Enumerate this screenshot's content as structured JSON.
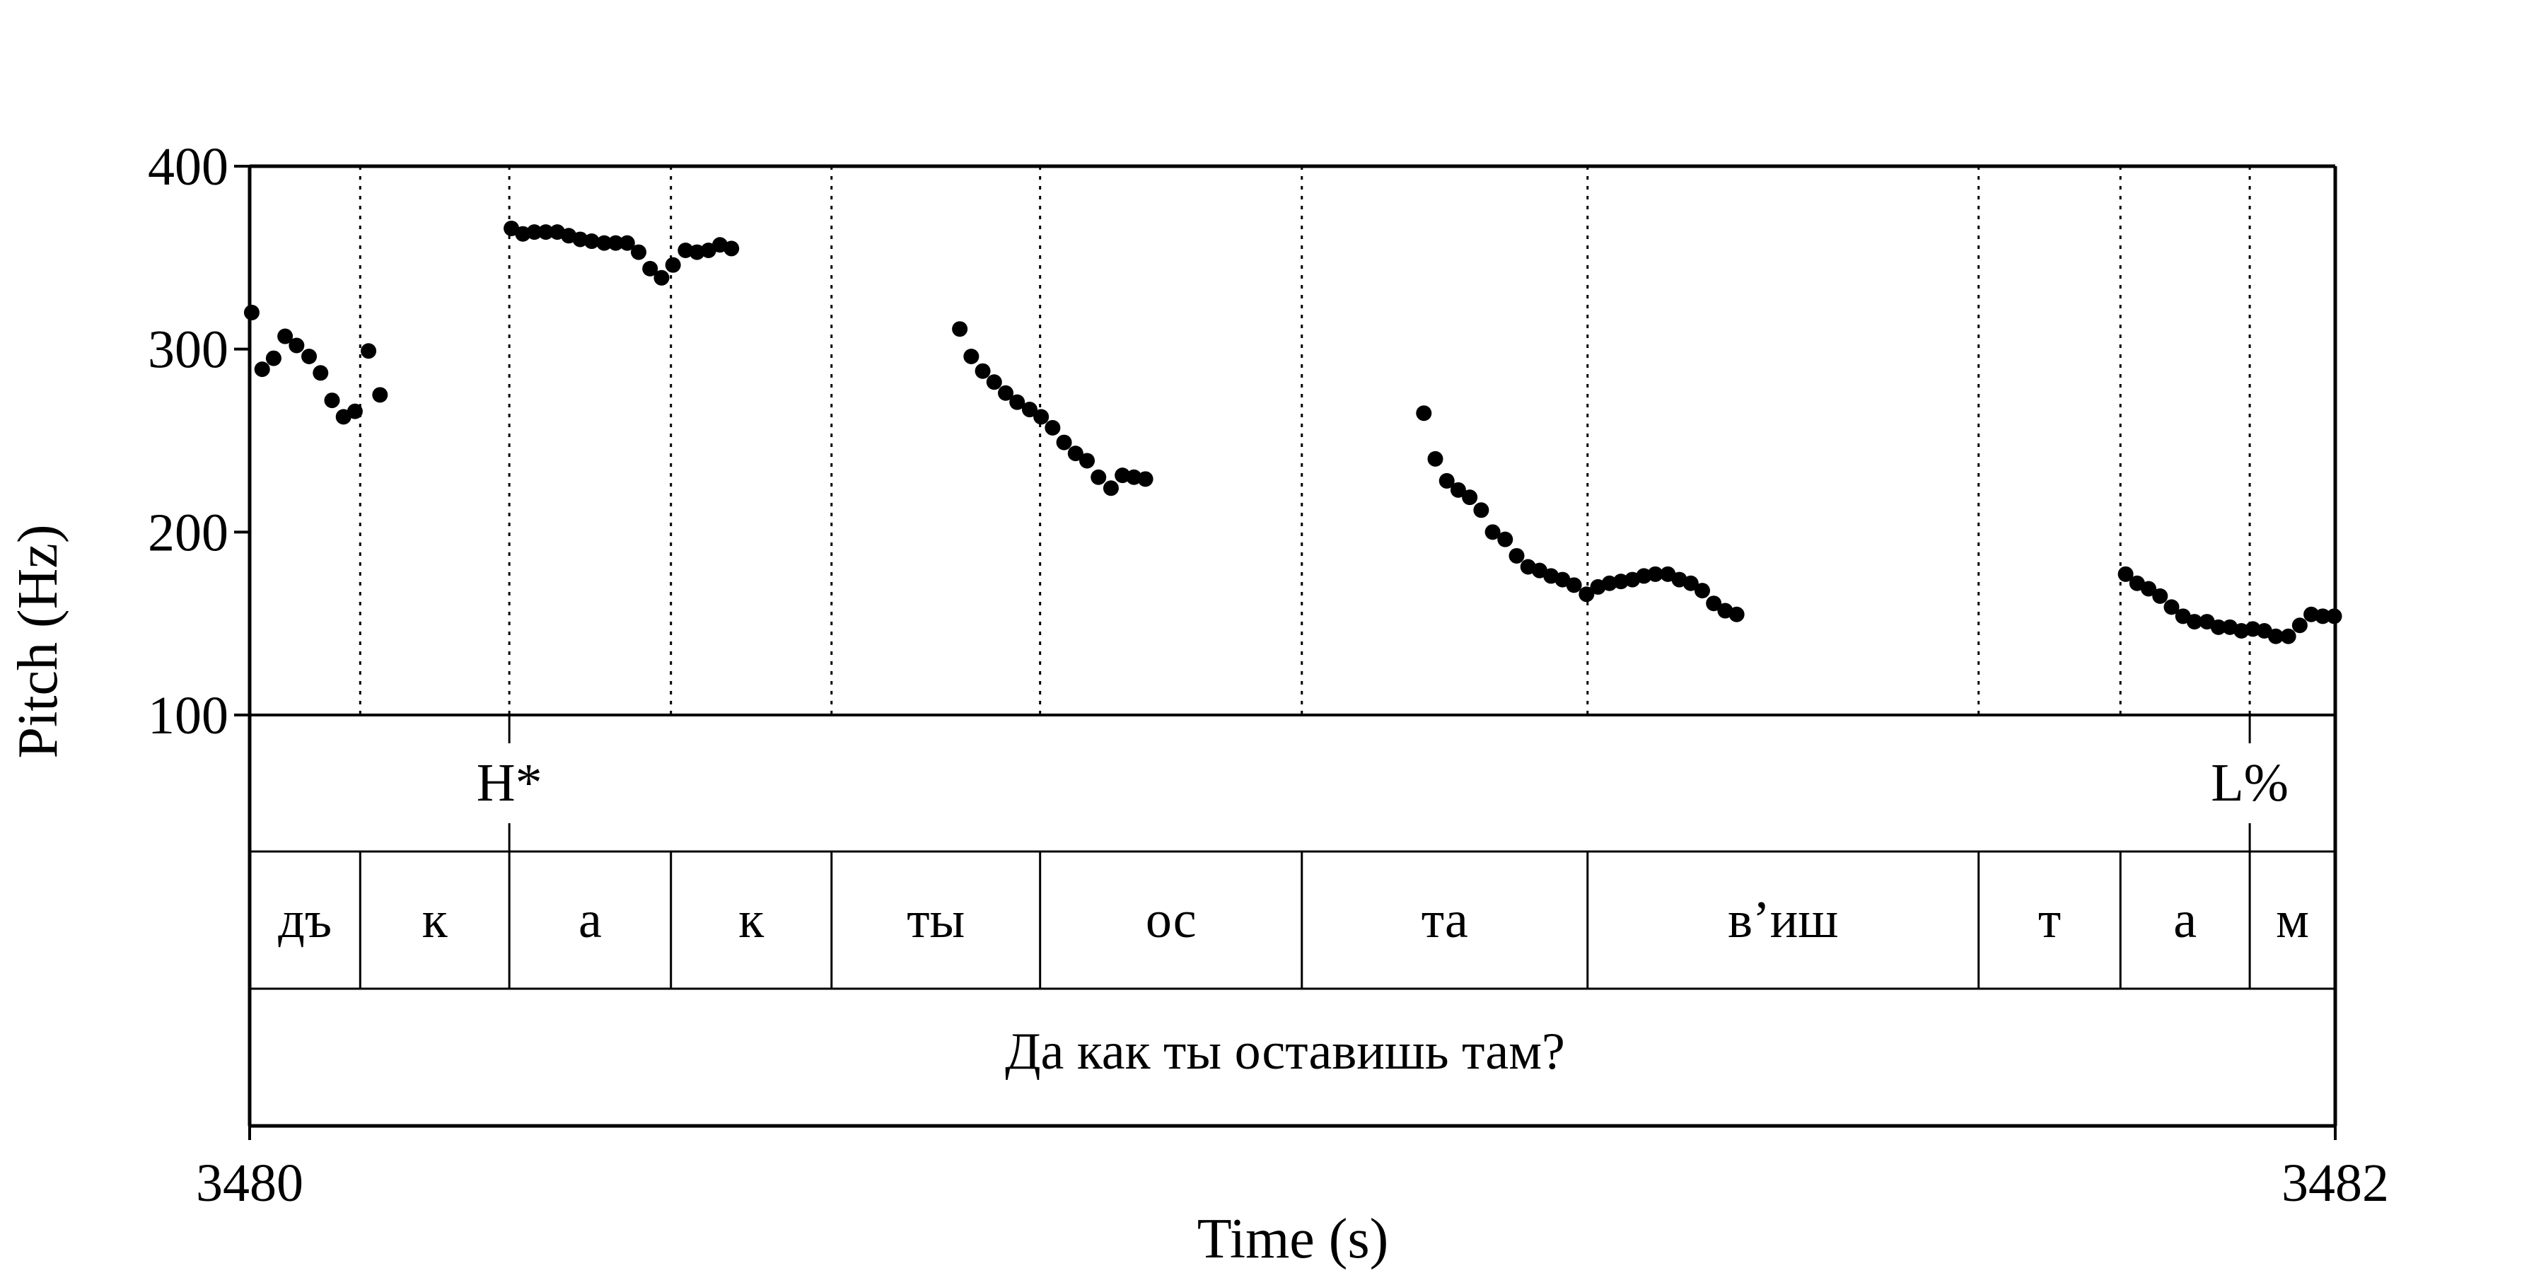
{
  "chart_data": {
    "type": "scatter",
    "xlabel": "Time (s)",
    "ylabel": "Pitch (Hz)",
    "xlim": [
      3480,
      3482
    ],
    "ylim": [
      100,
      400
    ],
    "y_ticks": [
      "100",
      "200",
      "300",
      "400"
    ],
    "x_ticks": [
      {
        "value": 3480,
        "label": "3480"
      },
      {
        "value": 3482,
        "label": "3482"
      }
    ],
    "boundaries": [
      3480.106,
      3480.249,
      3480.404,
      3480.558,
      3480.758,
      3481.009,
      3481.283,
      3481.658,
      3481.794,
      3481.918
    ],
    "tones": [
      {
        "t": 3480.249,
        "label": "H*"
      },
      {
        "t": 3481.918,
        "label": "L%"
      }
    ],
    "syllables": [
      {
        "start": 3480.0,
        "end": 3480.106,
        "label": "дъ"
      },
      {
        "start": 3480.106,
        "end": 3480.249,
        "label": "к"
      },
      {
        "start": 3480.249,
        "end": 3480.404,
        "label": "а"
      },
      {
        "start": 3480.404,
        "end": 3480.558,
        "label": "к"
      },
      {
        "start": 3480.558,
        "end": 3480.758,
        "label": "ты"
      },
      {
        "start": 3480.758,
        "end": 3481.009,
        "label": "ос"
      },
      {
        "start": 3481.009,
        "end": 3481.283,
        "label": "та"
      },
      {
        "start": 3481.283,
        "end": 3481.658,
        "label": "в’иш"
      },
      {
        "start": 3481.658,
        "end": 3481.794,
        "label": "т"
      },
      {
        "start": 3481.794,
        "end": 3481.918,
        "label": "а"
      },
      {
        "start": 3481.918,
        "end": 3482.0,
        "label": "м"
      }
    ],
    "sentence": "Да как ты оставишь там?",
    "series": [
      {
        "points": [
          [
            3480.002,
            320
          ],
          [
            3480.012,
            289
          ],
          [
            3480.023,
            295
          ],
          [
            3480.034,
            307
          ],
          [
            3480.045,
            302
          ],
          [
            3480.057,
            296
          ],
          [
            3480.068,
            287
          ],
          [
            3480.079,
            272
          ],
          [
            3480.09,
            263
          ],
          [
            3480.101,
            266
          ],
          [
            3480.114,
            299
          ],
          [
            3480.125,
            275
          ],
          [
            3480.251,
            366
          ],
          [
            3480.262,
            363
          ],
          [
            3480.273,
            364
          ],
          [
            3480.284,
            364
          ],
          [
            3480.295,
            364
          ],
          [
            3480.306,
            362
          ],
          [
            3480.317,
            360
          ],
          [
            3480.328,
            359
          ],
          [
            3480.34,
            358
          ],
          [
            3480.351,
            358
          ],
          [
            3480.362,
            358
          ],
          [
            3480.373,
            353
          ],
          [
            3480.384,
            344
          ],
          [
            3480.395,
            339
          ],
          [
            3480.406,
            346
          ],
          [
            3480.418,
            354
          ],
          [
            3480.429,
            353
          ],
          [
            3480.44,
            354
          ],
          [
            3480.451,
            357
          ],
          [
            3480.462,
            355
          ],
          [
            3480.681,
            311
          ],
          [
            3480.692,
            296
          ],
          [
            3480.703,
            288
          ],
          [
            3480.714,
            282
          ],
          [
            3480.725,
            276
          ],
          [
            3480.736,
            271
          ],
          [
            3480.748,
            267
          ],
          [
            3480.759,
            263
          ],
          [
            3480.77,
            257
          ],
          [
            3480.781,
            249
          ],
          [
            3480.792,
            243
          ],
          [
            3480.803,
            239
          ],
          [
            3480.814,
            230
          ],
          [
            3480.826,
            224
          ],
          [
            3480.837,
            231
          ],
          [
            3480.848,
            230
          ],
          [
            3480.859,
            229
          ],
          [
            3481.126,
            265
          ],
          [
            3481.137,
            240
          ],
          [
            3481.148,
            228
          ],
          [
            3481.159,
            223
          ],
          [
            3481.17,
            219
          ],
          [
            3481.181,
            212
          ],
          [
            3481.192,
            200
          ],
          [
            3481.204,
            196
          ],
          [
            3481.215,
            187
          ],
          [
            3481.226,
            181
          ],
          [
            3481.237,
            179
          ],
          [
            3481.248,
            176
          ],
          [
            3481.259,
            174
          ],
          [
            3481.27,
            171
          ],
          [
            3481.282,
            166
          ],
          [
            3481.293,
            170
          ],
          [
            3481.304,
            172
          ],
          [
            3481.315,
            173
          ],
          [
            3481.326,
            174
          ],
          [
            3481.337,
            176
          ],
          [
            3481.348,
            177
          ],
          [
            3481.36,
            177
          ],
          [
            3481.371,
            174
          ],
          [
            3481.382,
            172
          ],
          [
            3481.393,
            168
          ],
          [
            3481.404,
            161
          ],
          [
            3481.415,
            157
          ],
          [
            3481.426,
            155
          ],
          [
            3481.799,
            177
          ],
          [
            3481.81,
            172
          ],
          [
            3481.821,
            169
          ],
          [
            3481.832,
            165
          ],
          [
            3481.843,
            159
          ],
          [
            3481.854,
            154
          ],
          [
            3481.865,
            151
          ],
          [
            3481.877,
            151
          ],
          [
            3481.888,
            148
          ],
          [
            3481.899,
            148
          ],
          [
            3481.91,
            146
          ],
          [
            3481.921,
            147
          ],
          [
            3481.932,
            146
          ],
          [
            3481.943,
            143
          ],
          [
            3481.955,
            143
          ],
          [
            3481.966,
            149
          ],
          [
            3481.977,
            155
          ],
          [
            3481.988,
            154
          ],
          [
            3481.999,
            154
          ]
        ]
      }
    ]
  }
}
